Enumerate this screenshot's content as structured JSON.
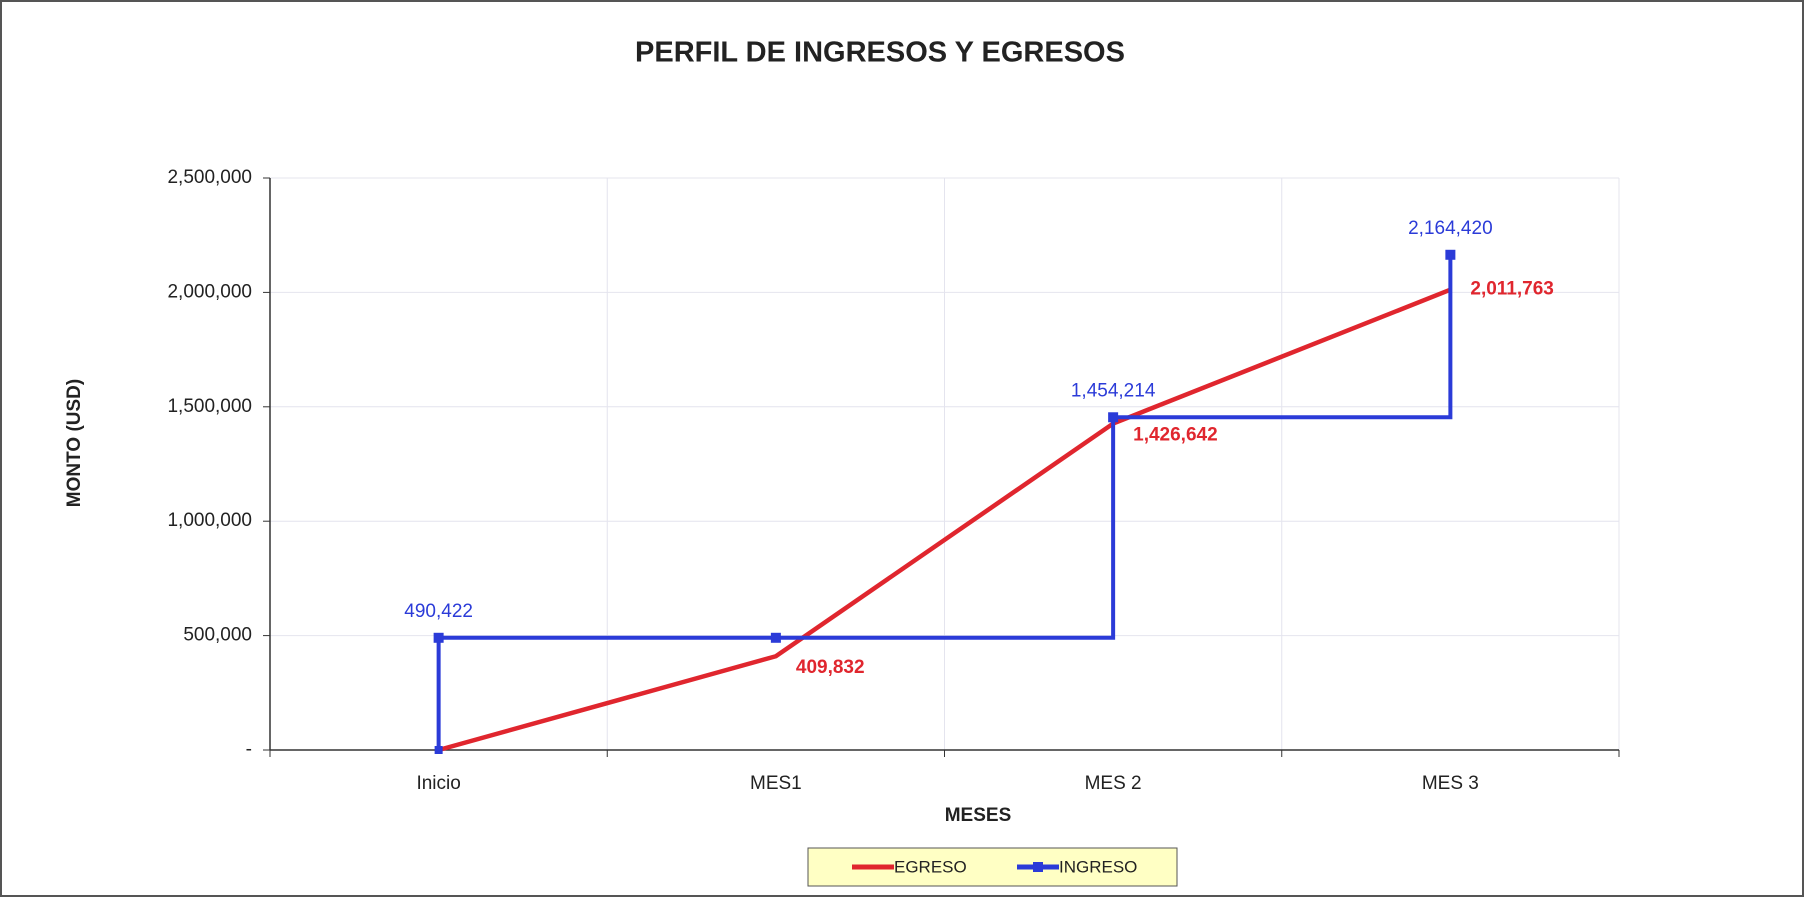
{
  "chart_data": {
    "type": "line",
    "title": "PERFIL DE INGRESOS Y EGRESOS",
    "x_label": "MESES",
    "y_label": "MONTO (USD)",
    "categories": [
      "Inicio",
      "MES1",
      "MES 2",
      "MES 3"
    ],
    "series": [
      {
        "name": "EGRESO",
        "color": "#e0262e",
        "style": "line",
        "values": [
          0,
          409832,
          1426642,
          2011763
        ],
        "value_labels": [
          null,
          "409,832",
          "1,426,642",
          "2,011,763"
        ]
      },
      {
        "name": "INGRESO",
        "color": "#2b3bd8",
        "style": "step",
        "values": [
          490422,
          490422,
          1454214,
          2164420
        ],
        "value_labels": [
          "490,422",
          null,
          "1,454,214",
          "2,164,420"
        ]
      }
    ],
    "ylim": [
      0,
      2500000
    ],
    "yticks": [
      {
        "value": 0,
        "label": "-"
      },
      {
        "value": 500000,
        "label": "500,000"
      },
      {
        "value": 1000000,
        "label": "1,000,000"
      },
      {
        "value": 1500000,
        "label": "1,500,000"
      },
      {
        "value": 2000000,
        "label": "2,000,000"
      },
      {
        "value": 2500000,
        "label": "2,500,000"
      }
    ],
    "grid": true,
    "legend": "bottom"
  }
}
